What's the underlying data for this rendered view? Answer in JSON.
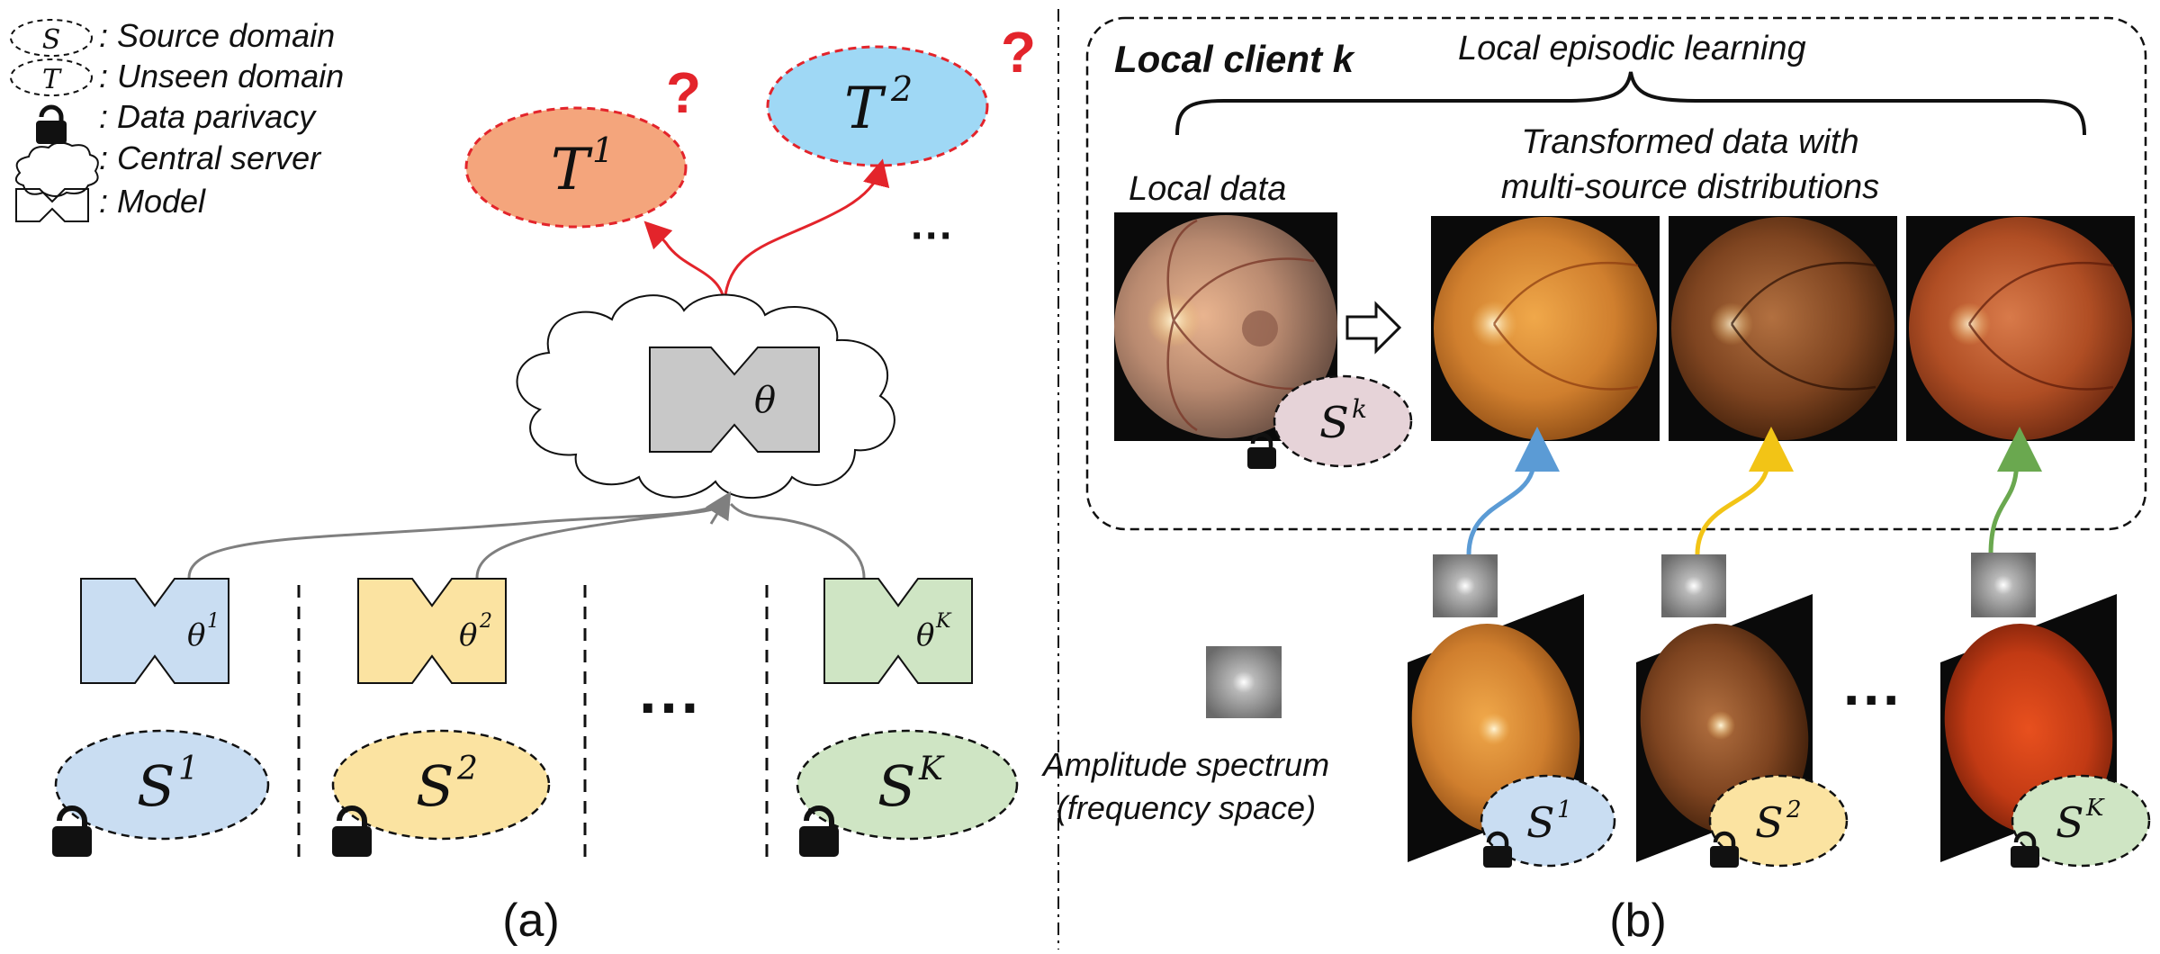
{
  "legend": {
    "source_label": ": Source domain",
    "source_symbol": "S",
    "unseen_label": ": Unseen domain",
    "unseen_symbol": "T",
    "privacy_label": ": Data parivacy",
    "server_label": ": Central server",
    "model_label": ": Model"
  },
  "panel_a": {
    "caption": "(a)",
    "server_param": "θ",
    "targets": [
      {
        "base": "T",
        "sup": "1",
        "mark": "?",
        "color": "#f4a57c"
      },
      {
        "base": "T",
        "sup": "2",
        "mark": "?",
        "color": "#9fd8f5"
      }
    ],
    "target_ellipsis": "···",
    "clients": [
      {
        "param_base": "θ",
        "param_sup": "1",
        "domain_base": "S",
        "domain_sup": "1",
        "color": "#c9ddf2"
      },
      {
        "param_base": "θ",
        "param_sup": "2",
        "domain_base": "S",
        "domain_sup": "2",
        "color": "#fbe3a1"
      },
      {
        "param_base": "θ",
        "param_sup": "K",
        "domain_base": "S",
        "domain_sup": "K",
        "color": "#cfe5c4"
      }
    ],
    "client_ellipsis": "···"
  },
  "panel_b": {
    "caption": "(b)",
    "title": "Local client k",
    "episodic_label": "Local episodic learning",
    "local_data_label": "Local data",
    "local_domain_base": "S",
    "local_domain_sup": "k",
    "transformed_label_line1": "Transformed data with",
    "transformed_label_line2": "multi-source distributions",
    "amplitude_label_line1": "Amplitude spectrum",
    "amplitude_label_line2": "(frequency space)",
    "sources": [
      {
        "base": "S",
        "sup": "1",
        "color": "#c9ddf2",
        "arrow": "#5b9bd5"
      },
      {
        "base": "S",
        "sup": "2",
        "color": "#fbe3a1",
        "arrow": "#f2c416"
      },
      {
        "base": "S",
        "sup": "K",
        "color": "#cfe5c4",
        "arrow": "#6aa84f"
      }
    ],
    "source_ellipsis": "···"
  },
  "colors": {
    "server_model": "#c8c8c8",
    "target_border": "#e3242b",
    "gray_arrow": "#7f7f7f"
  }
}
